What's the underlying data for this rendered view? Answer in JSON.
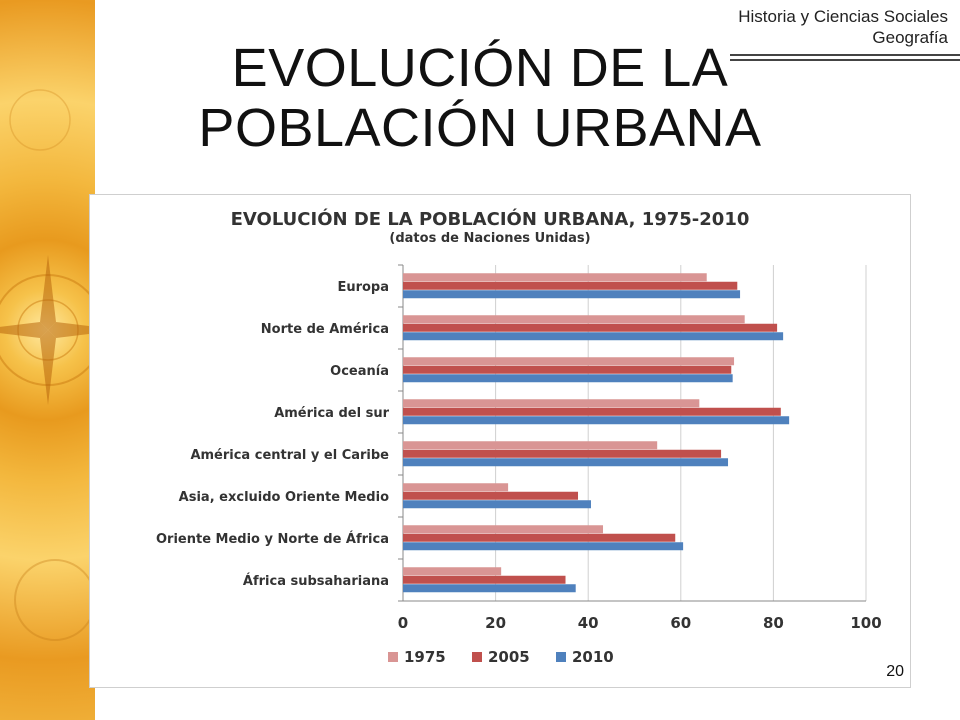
{
  "header": {
    "subject_line1": "Historia y Ciencias Sociales",
    "subject_line2": "Geografía"
  },
  "slide": {
    "title_line1": "EVOLUCIÓN DE LA",
    "title_line2": "POBLACIÓN URBANA",
    "page_number": "20"
  },
  "chart_data": {
    "type": "bar",
    "orientation": "horizontal",
    "title": "EVOLUCIÓN DE LA POBLACIÓN URBANA, 1975-2010",
    "subtitle": "(datos de Naciones Unidas)",
    "categories": [
      "Europa",
      "Norte de América",
      "Oceanía",
      "América del sur",
      "América central y el Caribe",
      "Asia, excluido Oriente Medio",
      "Oriente Medio y Norte de África",
      "África subsahariana"
    ],
    "series": [
      {
        "name": "1975",
        "color": "#d99594",
        "values": [
          65.6,
          73.8,
          71.5,
          64.0,
          54.9,
          22.7,
          43.2,
          21.2
        ]
      },
      {
        "name": "2005",
        "color": "#c0504d",
        "values": [
          72.2,
          80.8,
          70.9,
          81.6,
          68.7,
          37.8,
          58.8,
          35.1
        ]
      },
      {
        "name": "2010",
        "color": "#4f81bd",
        "values": [
          72.8,
          82.1,
          71.2,
          83.4,
          70.2,
          40.6,
          60.5,
          37.3
        ]
      }
    ],
    "xlim": [
      0,
      100
    ],
    "xticks": [
      0,
      20,
      40,
      60,
      80,
      100
    ],
    "grid": true,
    "legend_position": "bottom"
  }
}
